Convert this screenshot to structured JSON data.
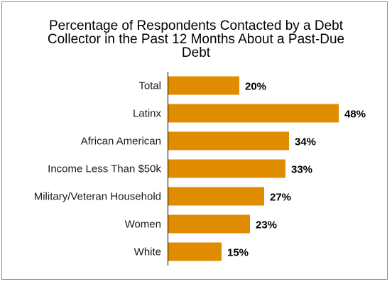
{
  "chart_data": {
    "type": "bar",
    "orientation": "horizontal",
    "title_lines": [
      "Percentage of Respondents Contacted by a Debt",
      "Collector in the Past 12 Months About a Past-Due",
      "Debt"
    ],
    "categories": [
      "Total",
      "Latinx",
      "African American",
      "Income Less Than $50k",
      "Military/Veteran Household",
      "Women",
      "White"
    ],
    "values": [
      20,
      48,
      34,
      33,
      27,
      23,
      15
    ],
    "value_labels": [
      "20%",
      "48%",
      "34%",
      "33%",
      "27%",
      "23%",
      "15%"
    ],
    "bar_color": "#e08c00",
    "axis_color": "#000000",
    "xlim": [
      0,
      50
    ],
    "grid": false,
    "legend": "none"
  }
}
